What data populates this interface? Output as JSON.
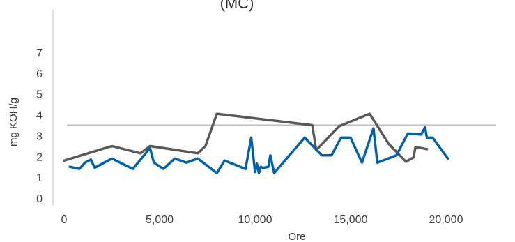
{
  "chart_data": {
    "type": "line",
    "title": "(MC)",
    "xlabel": "Ore",
    "ylabel": "mg KOH/g",
    "xlim": [
      -500,
      22500
    ],
    "ylim": [
      0,
      8
    ],
    "x_ticks": [
      {
        "value": 0,
        "label": "0"
      },
      {
        "value": 5000,
        "label": "5,000"
      },
      {
        "value": 10000,
        "label": "10,000"
      },
      {
        "value": 15000,
        "label": "15,000"
      },
      {
        "value": 20000,
        "label": "20,000"
      }
    ],
    "y_ticks": [
      {
        "value": 0,
        "label": "0"
      },
      {
        "value": 1,
        "label": "1"
      },
      {
        "value": 2,
        "label": "2"
      },
      {
        "value": 3,
        "label": "3"
      },
      {
        "value": 4,
        "label": "4"
      },
      {
        "value": 5,
        "label": "5"
      },
      {
        "value": 6,
        "label": "6"
      },
      {
        "value": 7,
        "label": "7"
      }
    ],
    "grid": false,
    "legend": "none",
    "reference_line": {
      "y": 3.5,
      "color": "#bfbfbf"
    },
    "series": [
      {
        "color": "#595959",
        "points": [
          [
            0,
            1.8
          ],
          [
            2500,
            2.5
          ],
          [
            4000,
            2.15
          ],
          [
            4500,
            2.5
          ],
          [
            7000,
            2.15
          ],
          [
            7400,
            2.5
          ],
          [
            8000,
            4.05
          ],
          [
            13000,
            3.5
          ],
          [
            13200,
            2.3
          ],
          [
            14400,
            3.45
          ],
          [
            16000,
            4.05
          ],
          [
            17000,
            2.6
          ],
          [
            17900,
            1.75
          ],
          [
            18300,
            1.95
          ],
          [
            18400,
            2.45
          ],
          [
            19000,
            2.35
          ]
        ]
      },
      {
        "color": "#0062ad",
        "points": [
          [
            300,
            1.5
          ],
          [
            800,
            1.4
          ],
          [
            1100,
            1.7
          ],
          [
            1400,
            1.85
          ],
          [
            1600,
            1.45
          ],
          [
            2500,
            1.9
          ],
          [
            3600,
            1.4
          ],
          [
            4500,
            2.4
          ],
          [
            4700,
            1.7
          ],
          [
            5200,
            1.4
          ],
          [
            5800,
            1.9
          ],
          [
            6400,
            1.7
          ],
          [
            7000,
            1.9
          ],
          [
            8000,
            1.2
          ],
          [
            8400,
            1.8
          ],
          [
            9500,
            1.4
          ],
          [
            9800,
            2.9
          ],
          [
            10000,
            1.25
          ],
          [
            10100,
            1.65
          ],
          [
            10200,
            1.2
          ],
          [
            10300,
            1.5
          ],
          [
            10400,
            1.45
          ],
          [
            10700,
            1.5
          ],
          [
            10800,
            2.05
          ],
          [
            11000,
            1.2
          ],
          [
            12600,
            2.9
          ],
          [
            13500,
            2.05
          ],
          [
            14000,
            2.05
          ],
          [
            14500,
            2.9
          ],
          [
            15000,
            2.9
          ],
          [
            15600,
            1.7
          ],
          [
            16200,
            3.35
          ],
          [
            16400,
            1.7
          ],
          [
            17400,
            2.05
          ],
          [
            18000,
            3.1
          ],
          [
            18700,
            3.05
          ],
          [
            18900,
            3.4
          ],
          [
            19000,
            2.9
          ],
          [
            19300,
            2.9
          ],
          [
            20100,
            1.9
          ]
        ]
      }
    ]
  }
}
